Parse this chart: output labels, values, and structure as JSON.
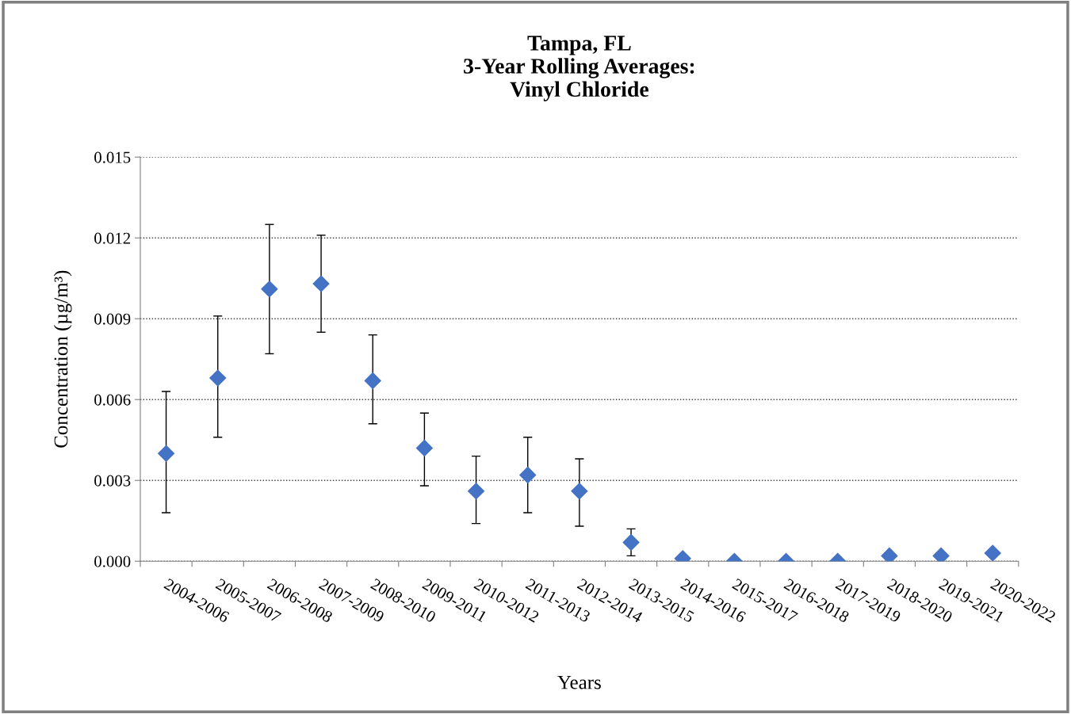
{
  "chart_data": {
    "type": "scatter",
    "title": "Tampa, FL\n3-Year Rolling Averages:\nVinyl Chloride",
    "xlabel": "Years",
    "ylabel": "Concentration (µg/m³)",
    "categories": [
      "2004-2006",
      "2005-2007",
      "2006-2008",
      "2007-2009",
      "2008-2010",
      "2009-2011",
      "2010-2012",
      "2011-2013",
      "2012-2014",
      "2013-2015",
      "2014-2016",
      "2015-2017",
      "2016-2018",
      "2017-2019",
      "2018-2020",
      "2019-2021",
      "2020-2022"
    ],
    "series": [
      {
        "color": "#4472c4",
        "values": [
          0.004,
          0.0068,
          0.0101,
          0.0103,
          0.0067,
          0.0042,
          0.0026,
          0.0032,
          0.0026,
          0.0007,
          0.0001,
          0.0,
          0.0,
          0.0,
          0.0002,
          0.0002,
          0.0003
        ],
        "errors": [
          [
            0.0018,
            0.0063
          ],
          [
            0.0046,
            0.0091
          ],
          [
            0.0077,
            0.0125
          ],
          [
            0.0085,
            0.0121
          ],
          [
            0.0051,
            0.0084
          ],
          [
            0.0028,
            0.0055
          ],
          [
            0.0014,
            0.0039
          ],
          [
            0.0018,
            0.0046
          ],
          [
            0.0013,
            0.0038
          ],
          [
            0.0002,
            0.0012
          ],
          null,
          null,
          null,
          null,
          null,
          null,
          null
        ]
      }
    ],
    "ylim": [
      0,
      0.015
    ],
    "yticks": [
      {
        "value": 0,
        "label": "0.000"
      },
      {
        "value": 0.003,
        "label": "0.003"
      },
      {
        "value": 0.006,
        "label": "0.006"
      },
      {
        "value": 0.009,
        "label": "0.009"
      },
      {
        "value": 0.012,
        "label": "0.012"
      },
      {
        "value": 0.015,
        "label": "0.015"
      }
    ],
    "grid": "y",
    "marker": "diamond",
    "legend": false
  }
}
